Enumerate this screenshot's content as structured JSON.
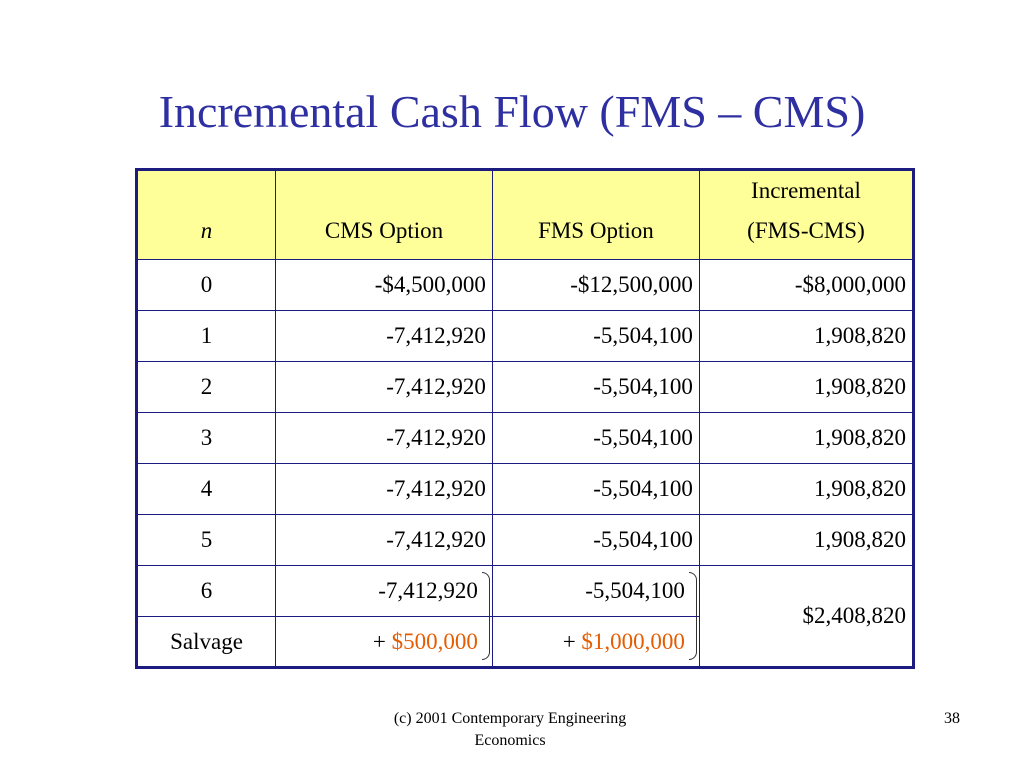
{
  "title": "Incremental Cash Flow (FMS – CMS)",
  "table": {
    "headers": {
      "n": "n",
      "cms": "CMS Option",
      "fms": "FMS Option",
      "incremental_line1": "Incremental",
      "incremental_line2": "(FMS-CMS)"
    },
    "rows": [
      {
        "n": "0",
        "cms": "-$4,500,000",
        "fms": "-$12,500,000",
        "inc": "-$8,000,000"
      },
      {
        "n": "1",
        "cms": "-7,412,920",
        "fms": "-5,504,100",
        "inc": "1,908,820"
      },
      {
        "n": "2",
        "cms": "-7,412,920",
        "fms": "-5,504,100",
        "inc": "1,908,820"
      },
      {
        "n": "3",
        "cms": "-7,412,920",
        "fms": "-5,504,100",
        "inc": "1,908,820"
      },
      {
        "n": "4",
        "cms": "-7,412,920",
        "fms": "-5,504,100",
        "inc": "1,908,820"
      },
      {
        "n": "5",
        "cms": "-7,412,920",
        "fms": "-5,504,100",
        "inc": "1,908,820"
      },
      {
        "n": "6",
        "cms": "-7,412,920",
        "fms": "-5,504,100"
      }
    ],
    "salvage": {
      "label": "Salvage",
      "plus": "+",
      "cms": "$500,000",
      "fms": "$1,000,000"
    },
    "merged_incremental": "$2,408,820"
  },
  "footer": {
    "line1": "(c) 2001 Contemporary Engineering",
    "line2": "Economics"
  },
  "page_number": "38",
  "colors": {
    "title": "#2e2fa0",
    "header_bg": "#ffff99",
    "border": "#1c1c80",
    "salvage_value": "#e65c00"
  }
}
